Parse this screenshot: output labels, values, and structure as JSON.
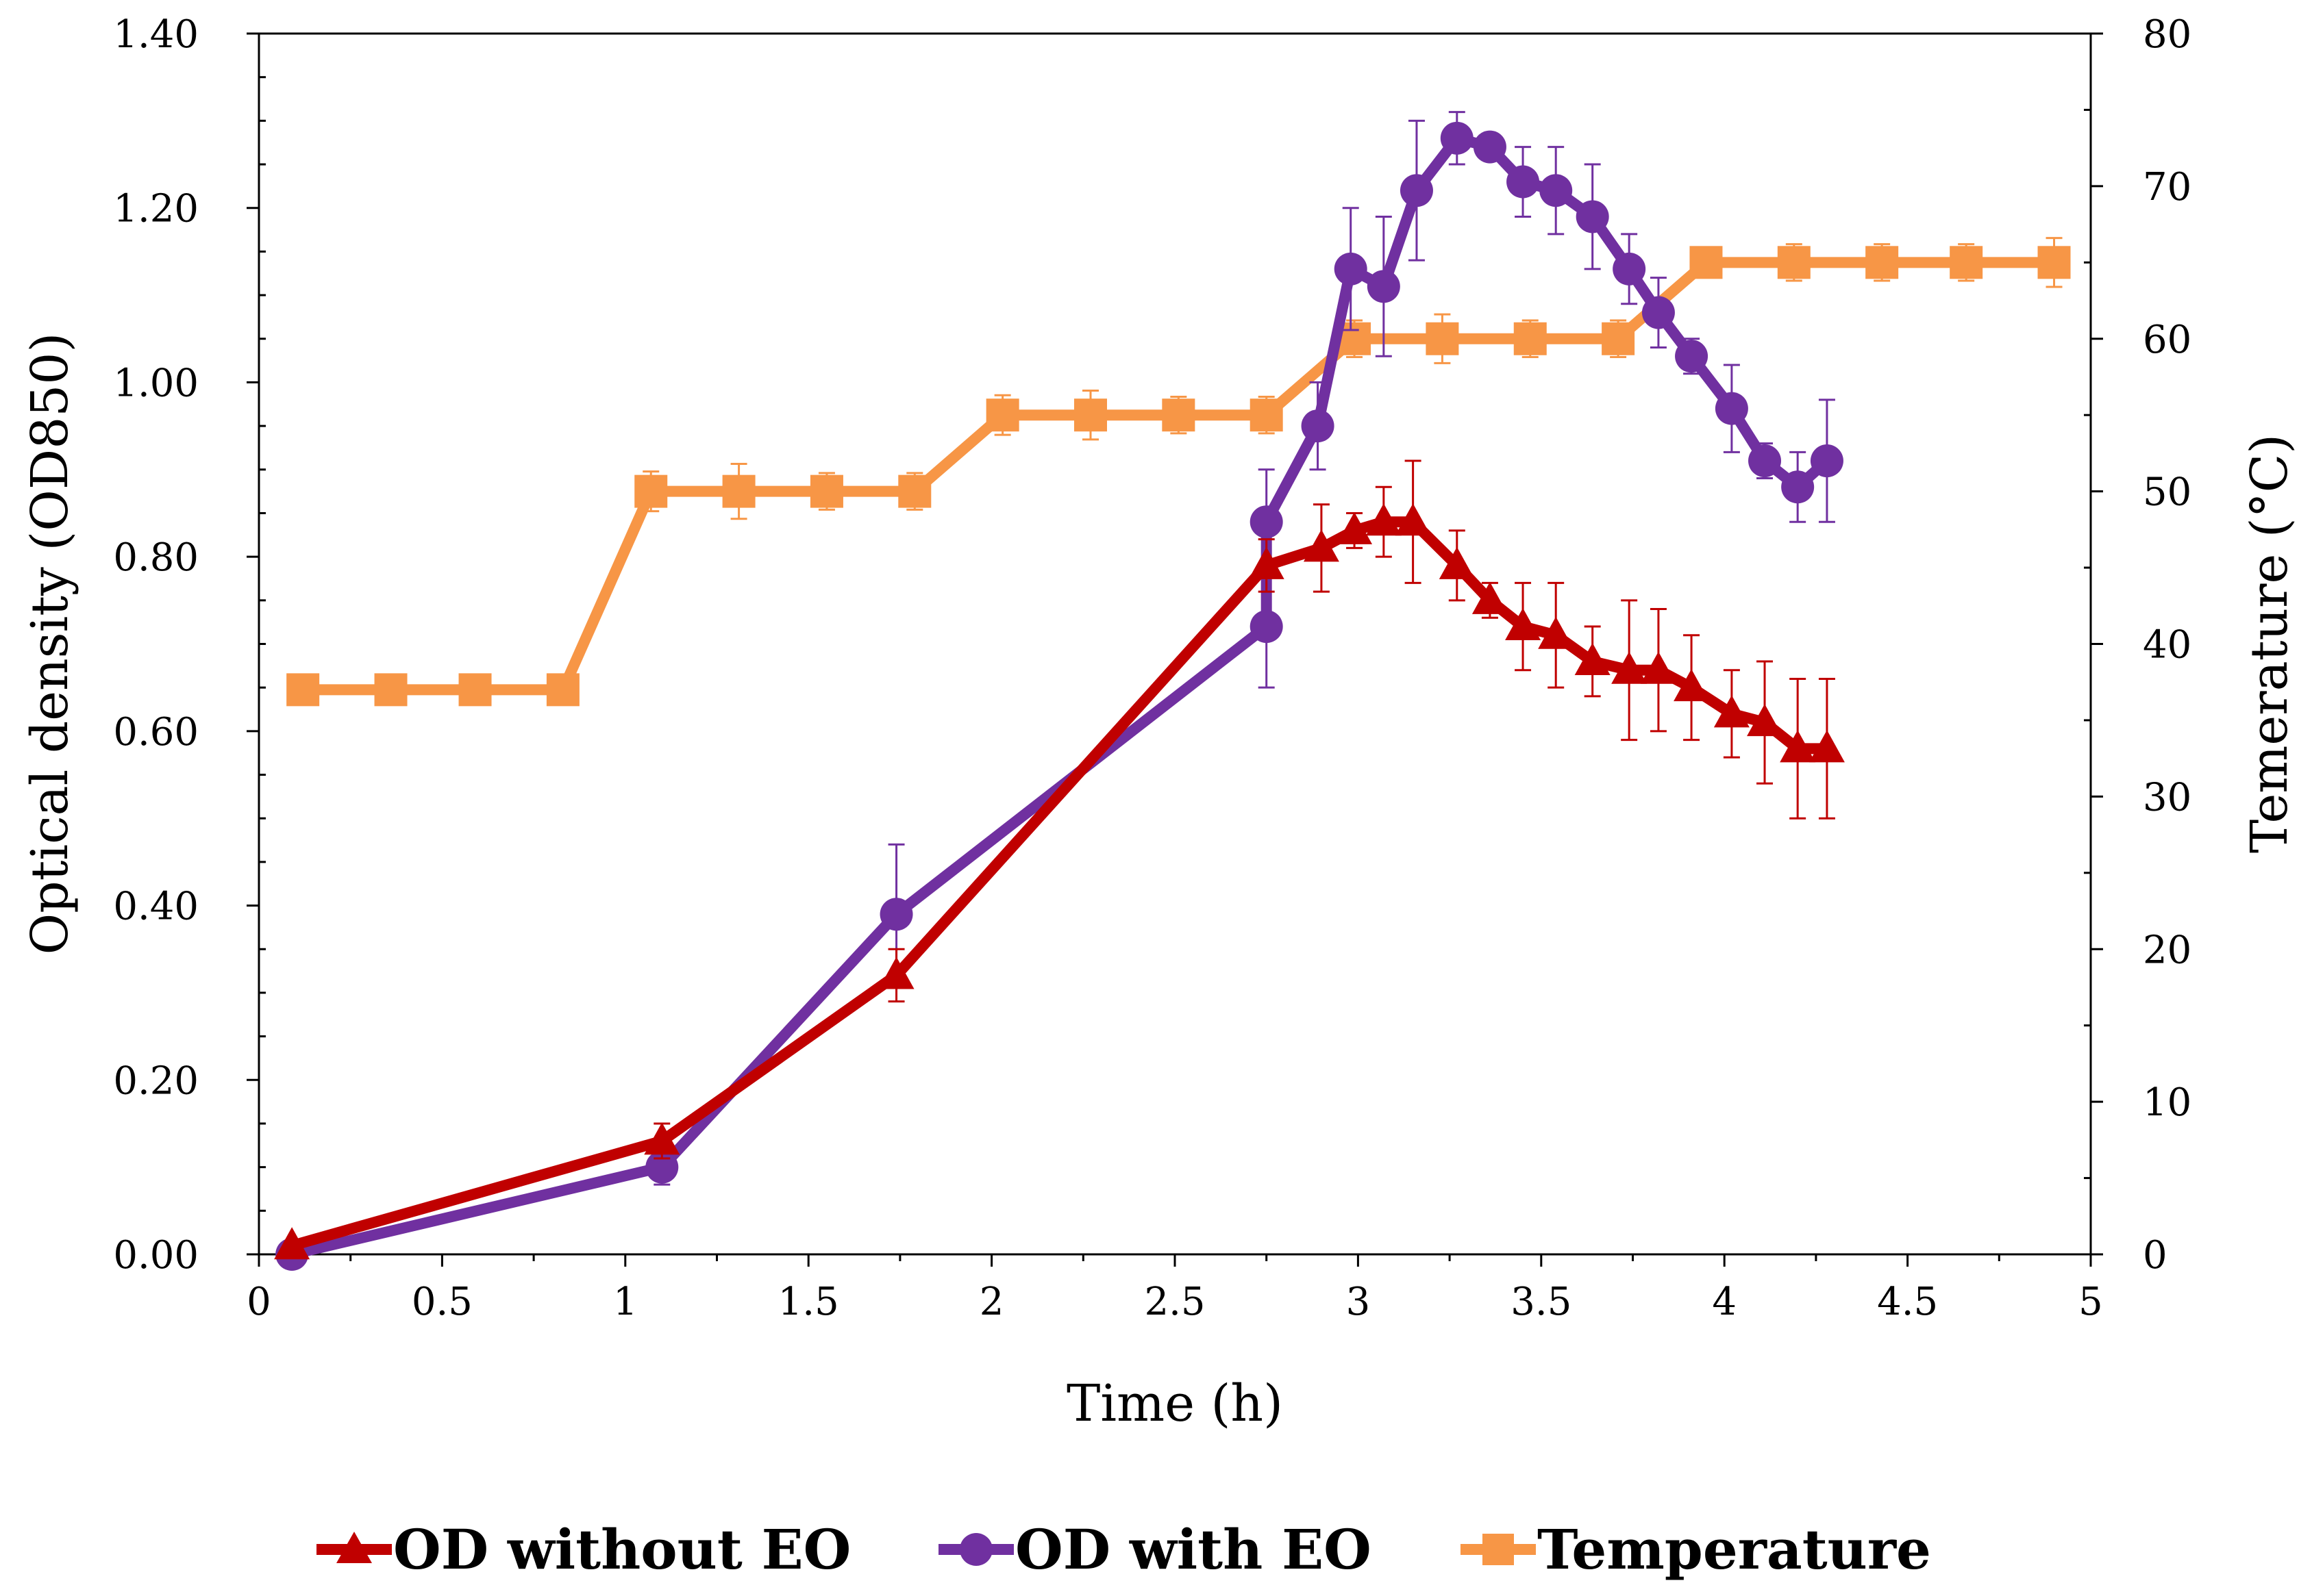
{
  "chart_data": {
    "type": "line",
    "title": "",
    "xlabel": "Time (h)",
    "ylabel": "Optical density (OD850)",
    "y2label": "Temerature (°C)",
    "xlim": [
      0,
      5
    ],
    "ylim": [
      0,
      1.4
    ],
    "y2lim": [
      0,
      80
    ],
    "x_ticks": [
      "0",
      "0.5",
      "1",
      "1.5",
      "2",
      "2.5",
      "3",
      "3.5",
      "4",
      "4.5",
      "5"
    ],
    "y_ticks": [
      "0.00",
      "0.20",
      "0.40",
      "0.60",
      "0.80",
      "1.00",
      "1.20",
      "1.40"
    ],
    "y2_ticks": [
      "0",
      "10",
      "20",
      "30",
      "40",
      "50",
      "60",
      "70",
      "80"
    ],
    "grid": false,
    "legend_position": "bottom",
    "series": [
      {
        "name": "OD without EO",
        "axis": "left",
        "marker": "triangle",
        "color": "#c00000",
        "x": [
          0.09,
          1.1,
          1.74,
          2.75,
          2.9,
          2.99,
          3.07,
          3.15,
          3.27,
          3.36,
          3.45,
          3.54,
          3.64,
          3.74,
          3.82,
          3.91,
          4.02,
          4.11,
          4.2,
          4.28
        ],
        "y": [
          0.01,
          0.13,
          0.32,
          0.79,
          0.81,
          0.83,
          0.84,
          0.84,
          0.79,
          0.75,
          0.72,
          0.71,
          0.68,
          0.67,
          0.67,
          0.65,
          0.62,
          0.61,
          0.58,
          0.58
        ],
        "error": [
          0,
          0.02,
          0.03,
          0.03,
          0.05,
          0.02,
          0.04,
          0.07,
          0.04,
          0.02,
          0.05,
          0.06,
          0.04,
          0.08,
          0.07,
          0.06,
          0.05,
          0.07,
          0.08,
          0.08
        ]
      },
      {
        "name": "OD with EO",
        "axis": "left",
        "marker": "circle",
        "color": "#7030a0",
        "x": [
          0.09,
          1.1,
          1.74,
          2.75,
          2.75,
          2.89,
          2.98,
          3.07,
          3.16,
          3.27,
          3.36,
          3.45,
          3.54,
          3.64,
          3.74,
          3.82,
          3.91,
          4.02,
          4.11,
          4.2,
          4.28
        ],
        "y": [
          0.0,
          0.1,
          0.39,
          0.72,
          0.84,
          0.95,
          1.13,
          1.11,
          1.22,
          1.28,
          1.27,
          1.23,
          1.22,
          1.19,
          1.13,
          1.08,
          1.03,
          0.97,
          0.91,
          0.88,
          0.91
        ],
        "error": [
          0,
          0.02,
          0.08,
          0.07,
          0.06,
          0.05,
          0.07,
          0.08,
          0.08,
          0.03,
          0.01,
          0.04,
          0.05,
          0.06,
          0.04,
          0.04,
          0.02,
          0.05,
          0.02,
          0.04,
          0.07
        ]
      },
      {
        "name": "Temperature",
        "axis": "right",
        "marker": "square",
        "color": "#f79646",
        "x": [
          0.12,
          0.36,
          0.59,
          0.83,
          1.07,
          1.31,
          1.55,
          1.79,
          2.03,
          2.27,
          2.51,
          2.75,
          2.99,
          3.23,
          3.47,
          3.71,
          3.95,
          4.19,
          4.43,
          4.66,
          4.9
        ],
        "y": [
          37,
          37,
          37,
          37,
          50,
          50,
          50,
          50,
          55,
          55,
          55,
          55,
          60,
          60,
          60,
          60,
          65,
          65,
          65,
          65,
          65
        ],
        "error": [
          0,
          0,
          0,
          0,
          1.3,
          1.8,
          1.2,
          1.2,
          1.3,
          1.6,
          1.2,
          1.2,
          1.2,
          1.6,
          1.2,
          1.2,
          0.8,
          1.2,
          1.2,
          1.2,
          1.6
        ]
      }
    ]
  }
}
